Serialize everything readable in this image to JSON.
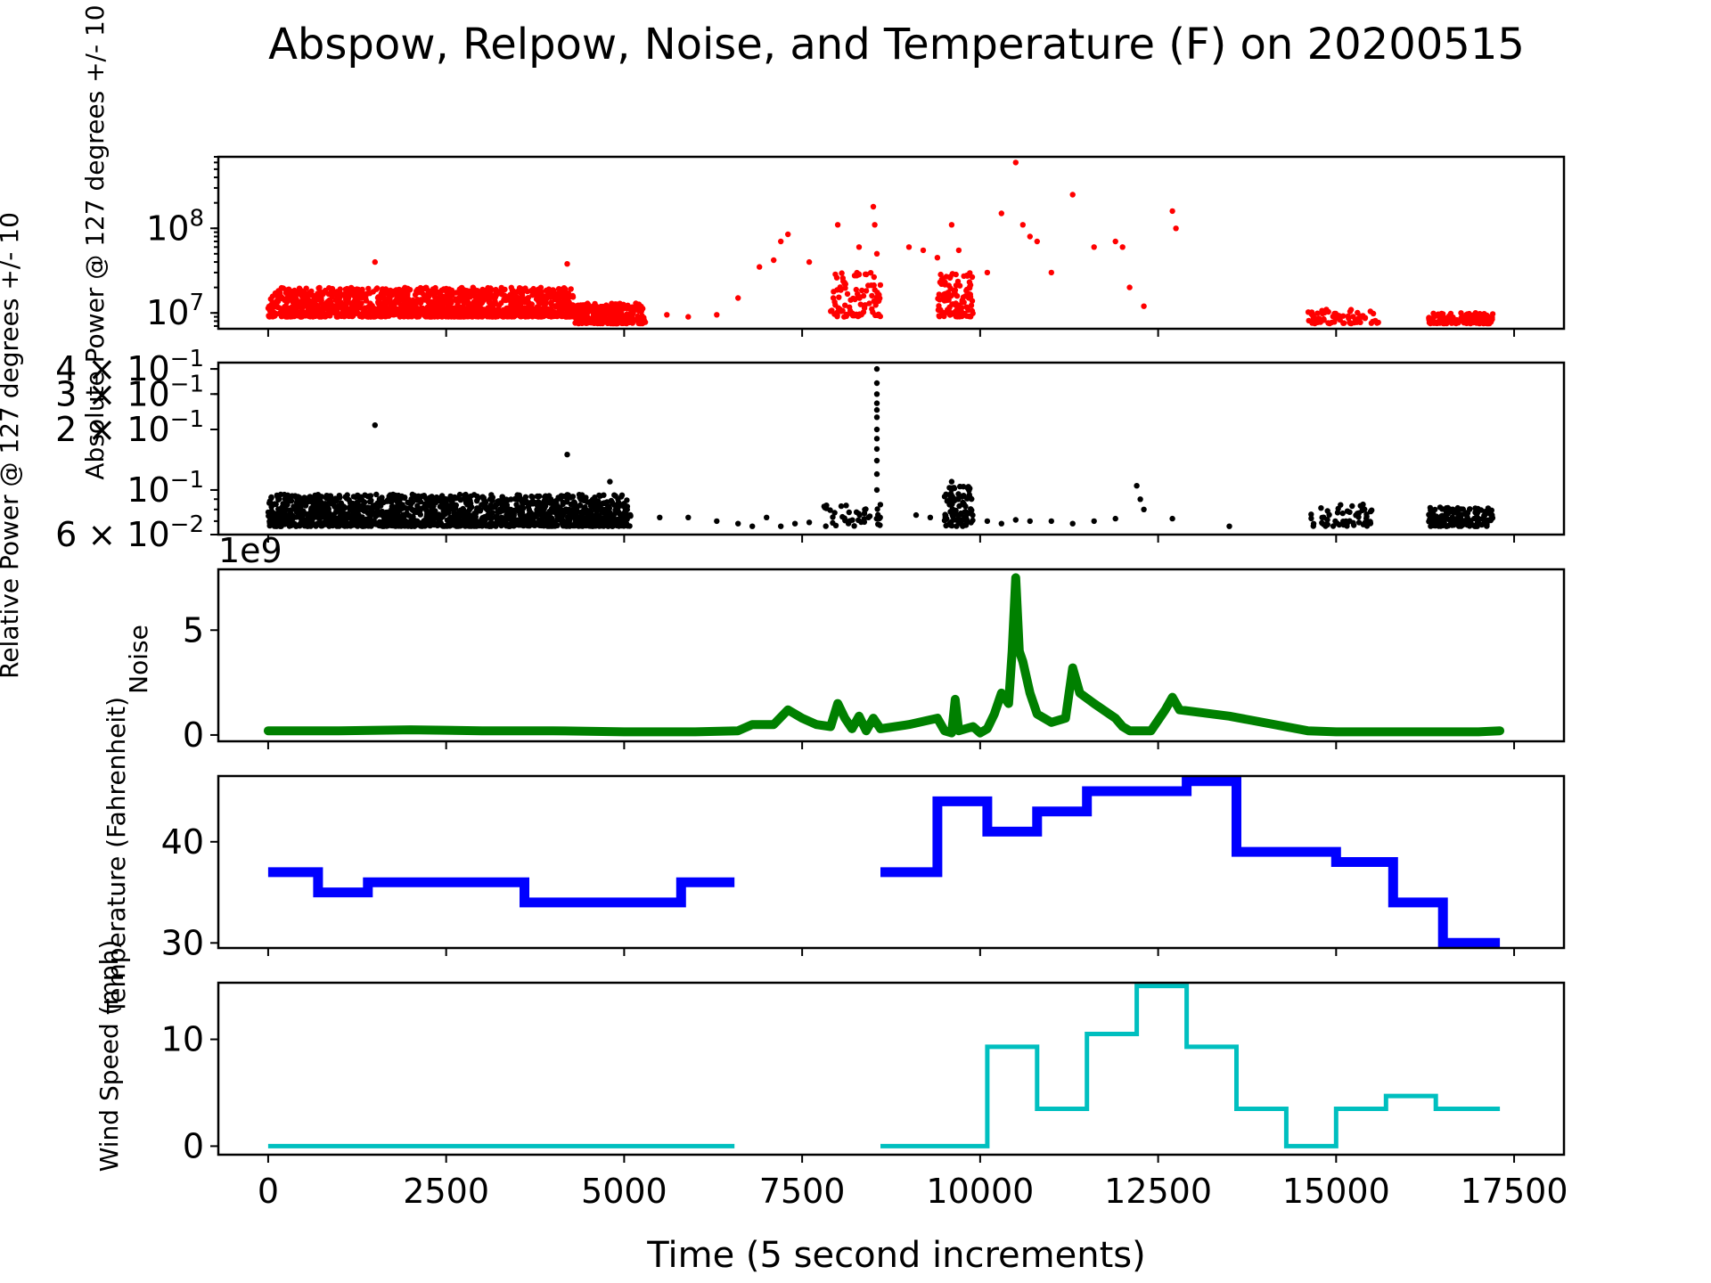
{
  "chart_data": {
    "title": "Abspow, Relpow, Noise, and Temperature (F) on 20200515",
    "xlabel": "Time (5 second increments)",
    "xlim": [
      -700,
      18200
    ],
    "x_ticks": [
      0,
      2500,
      5000,
      7500,
      10000,
      12500,
      15000,
      17500
    ],
    "x_tick_labels": [
      "0",
      "2500",
      "5000",
      "7500",
      "10000",
      "12500",
      "15000",
      "17500"
    ],
    "panels": [
      {
        "id": "abspow",
        "type": "scatter",
        "color": "#ff0000",
        "ylabel": "Absolute Power @ 127 degrees +/- 10",
        "yscale": "log",
        "ylim": [
          6500000,
          700000000
        ],
        "y_ticks": [
          10000000,
          100000000
        ],
        "y_tick_labels": [
          {
            "base": "10",
            "exp": "7"
          },
          {
            "base": "10",
            "exp": "8"
          }
        ],
        "clusters": [
          {
            "x": [
              0,
              4300
            ],
            "y": [
              9000000,
              20000000
            ],
            "n": 1400
          },
          {
            "x": [
              4300,
              5300
            ],
            "y": [
              7500000,
              13000000
            ],
            "n": 280
          },
          {
            "x": [
              7900,
              8600
            ],
            "y": [
              9000000,
              30000000
            ],
            "n": 90
          },
          {
            "x": [
              9400,
              9900
            ],
            "y": [
              9000000,
              30000000
            ],
            "n": 110
          },
          {
            "x": [
              14600,
              15600
            ],
            "y": [
              7500000,
              11000000
            ],
            "n": 70
          },
          {
            "x": [
              16300,
              17200
            ],
            "y": [
              7500000,
              10000000
            ],
            "n": 160
          }
        ],
        "points": [
          [
            1500,
            40000000
          ],
          [
            4200,
            38000000
          ],
          [
            5600,
            9500000
          ],
          [
            5900,
            9000000
          ],
          [
            6300,
            9500000
          ],
          [
            6600,
            15000000
          ],
          [
            6900,
            35000000
          ],
          [
            7100,
            42000000
          ],
          [
            7200,
            70000000
          ],
          [
            7300,
            85000000
          ],
          [
            7600,
            40000000
          ],
          [
            8000,
            110000000
          ],
          [
            8300,
            60000000
          ],
          [
            8500,
            180000000
          ],
          [
            8520,
            110000000
          ],
          [
            8550,
            50000000
          ],
          [
            9000,
            60000000
          ],
          [
            9200,
            55000000
          ],
          [
            9400,
            45000000
          ],
          [
            9600,
            110000000
          ],
          [
            9700,
            55000000
          ],
          [
            10100,
            30000000
          ],
          [
            10300,
            150000000
          ],
          [
            10500,
            600000000
          ],
          [
            10600,
            110000000
          ],
          [
            10700,
            80000000
          ],
          [
            10800,
            70000000
          ],
          [
            11000,
            30000000
          ],
          [
            11300,
            250000000
          ],
          [
            11600,
            60000000
          ],
          [
            11900,
            70000000
          ],
          [
            12000,
            60000000
          ],
          [
            12100,
            20000000
          ],
          [
            12300,
            12000000
          ],
          [
            12700,
            160000000
          ],
          [
            12750,
            100000000
          ]
        ]
      },
      {
        "id": "relpow",
        "type": "scatter",
        "color": "#000000",
        "ylabel": "Relative Power @ 127 degrees +/- 10",
        "yscale": "log",
        "ylim": [
          0.06,
          0.43
        ],
        "y_ticks": [
          0.06,
          0.1,
          0.2,
          0.3,
          0.4
        ],
        "y_tick_labels": [
          {
            "mant": "6",
            "base": "10",
            "exp": "−2"
          },
          {
            "mant": "",
            "base": "10",
            "exp": "−1"
          },
          {
            "mant": "2",
            "base": "10",
            "exp": "−1"
          },
          {
            "mant": "3",
            "base": "10",
            "exp": "−1"
          },
          {
            "mant": "4",
            "base": "10",
            "exp": "−1"
          }
        ],
        "clusters": [
          {
            "x": [
              0,
              5100
            ],
            "y": [
              0.066,
              0.095
            ],
            "n": 1600
          },
          {
            "x": [
              7800,
              8600
            ],
            "y": [
              0.066,
              0.085
            ],
            "n": 40
          },
          {
            "x": [
              9500,
              9900
            ],
            "y": [
              0.066,
              0.105
            ],
            "n": 90
          },
          {
            "x": [
              14600,
              15500
            ],
            "y": [
              0.066,
              0.085
            ],
            "n": 55
          },
          {
            "x": [
              16300,
              17200
            ],
            "y": [
              0.066,
              0.082
            ],
            "n": 150
          }
        ],
        "points": [
          [
            1500,
            0.21
          ],
          [
            4200,
            0.15
          ],
          [
            4800,
            0.11
          ],
          [
            5500,
            0.073
          ],
          [
            5900,
            0.073
          ],
          [
            6300,
            0.07
          ],
          [
            6600,
            0.068
          ],
          [
            6800,
            0.066
          ],
          [
            7000,
            0.073
          ],
          [
            7200,
            0.066
          ],
          [
            7400,
            0.068
          ],
          [
            7600,
            0.069
          ],
          [
            8550,
            0.4
          ],
          [
            8550,
            0.34
          ],
          [
            8550,
            0.3
          ],
          [
            8550,
            0.27
          ],
          [
            8550,
            0.25
          ],
          [
            8550,
            0.23
          ],
          [
            8550,
            0.2
          ],
          [
            8550,
            0.18
          ],
          [
            8550,
            0.16
          ],
          [
            8550,
            0.14
          ],
          [
            8550,
            0.12
          ],
          [
            8550,
            0.1
          ],
          [
            9100,
            0.075
          ],
          [
            9300,
            0.073
          ],
          [
            9600,
            0.11
          ],
          [
            10100,
            0.07
          ],
          [
            10300,
            0.068
          ],
          [
            10500,
            0.071
          ],
          [
            10700,
            0.07
          ],
          [
            11000,
            0.07
          ],
          [
            11300,
            0.068
          ],
          [
            11600,
            0.07
          ],
          [
            11900,
            0.072
          ],
          [
            12200,
            0.105
          ],
          [
            12250,
            0.09
          ],
          [
            12300,
            0.08
          ],
          [
            12700,
            0.072
          ],
          [
            13500,
            0.066
          ]
        ]
      },
      {
        "id": "noise",
        "type": "line",
        "color": "#008000",
        "ylabel": "Noise",
        "offset_label": "1e9",
        "ylim": [
          -0.3,
          7.9
        ],
        "y_ticks": [
          0,
          5
        ],
        "y_tick_labels": [
          "0",
          "5"
        ],
        "series": [
          {
            "x": [
              0,
              1000,
              2000,
              3000,
              4000,
              5000,
              6000,
              6600,
              6800,
              7100,
              7300,
              7500,
              7700,
              7900,
              8000,
              8100,
              8200,
              8300,
              8400,
              8500,
              8600,
              9000,
              9400,
              9500,
              9600,
              9650,
              9700,
              9900,
              10000,
              10100,
              10200,
              10300,
              10400,
              10450,
              10500,
              10550,
              10600,
              10700,
              10800,
              11000,
              11200,
              11300,
              11400,
              11600,
              11900,
              12000,
              12100,
              12400,
              12600,
              12700,
              12800,
              13500,
              14600,
              15000,
              16000,
              17000,
              17300
            ],
            "y": [
              0.2,
              0.2,
              0.25,
              0.2,
              0.2,
              0.15,
              0.15,
              0.2,
              0.5,
              0.5,
              1.2,
              0.8,
              0.5,
              0.4,
              1.5,
              0.8,
              0.3,
              0.9,
              0.2,
              0.8,
              0.3,
              0.5,
              0.8,
              0.2,
              0.1,
              1.7,
              0.2,
              0.4,
              0.1,
              0.3,
              1.0,
              2.0,
              1.5,
              4.0,
              7.5,
              4.0,
              3.5,
              2.0,
              1.0,
              0.6,
              0.8,
              3.2,
              2.0,
              1.5,
              0.8,
              0.4,
              0.2,
              0.2,
              1.2,
              1.8,
              1.2,
              0.9,
              0.2,
              0.15,
              0.15,
              0.15,
              0.2
            ]
          }
        ]
      },
      {
        "id": "temperature",
        "type": "step",
        "color": "#0000ff",
        "ylabel": "Temperature (Fahrenheit)",
        "ylim": [
          29.5,
          46.5
        ],
        "y_ticks": [
          30,
          40
        ],
        "y_tick_labels": [
          "30",
          "40"
        ],
        "segments": [
          {
            "x": [
              0,
              700,
              700,
              1400,
              1400,
              3600,
              3600,
              5800,
              5800,
              6550
            ],
            "y": [
              37,
              37,
              35,
              35,
              36,
              36,
              34,
              34,
              36,
              36
            ]
          },
          {
            "x": [
              8600,
              9400,
              9400,
              10100,
              10100,
              10800,
              10800,
              11500,
              11500,
              12900,
              12900,
              13600,
              13600,
              15000,
              15000,
              15800,
              15800,
              16500,
              16500,
              17300
            ],
            "y": [
              37,
              37,
              44,
              44,
              41,
              41,
              43,
              43,
              45,
              45,
              46,
              46,
              39,
              39,
              38,
              38,
              34,
              34,
              30,
              30
            ]
          }
        ]
      },
      {
        "id": "wind",
        "type": "step",
        "color": "#00bfbf",
        "ylabel": "Wind Speed (mph)",
        "ylim": [
          -0.8,
          15.3
        ],
        "y_ticks": [
          0,
          10
        ],
        "y_tick_labels": [
          "0",
          "10"
        ],
        "segments": [
          {
            "x": [
              0,
              6550
            ],
            "y": [
              0,
              0
            ]
          },
          {
            "x": [
              8600,
              10100,
              10100,
              10800,
              10800,
              11500,
              11500,
              12200,
              12200,
              12900,
              12900,
              13600,
              13600,
              14300,
              14300,
              15000,
              15000,
              15700,
              15700,
              16400,
              16400,
              17300
            ],
            "y": [
              0,
              0,
              9.3,
              9.3,
              3.5,
              3.5,
              10.5,
              10.5,
              15,
              15,
              9.3,
              9.3,
              3.5,
              3.5,
              0,
              0,
              3.5,
              3.5,
              4.7,
              4.7,
              3.5,
              3.5
            ]
          }
        ]
      }
    ]
  }
}
